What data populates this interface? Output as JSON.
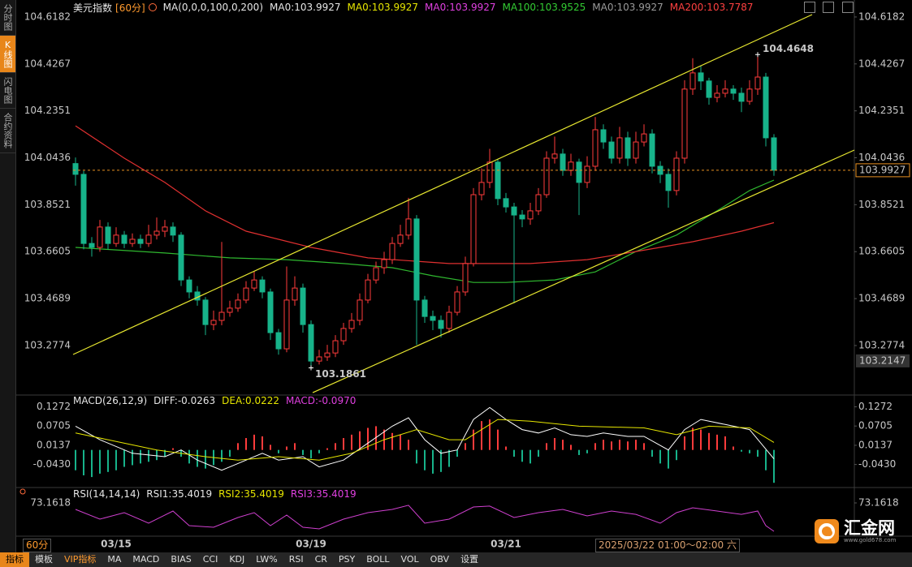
{
  "sidebar": {
    "tabs": [
      "分时图",
      "K线图",
      "闪电图",
      "合约资料"
    ],
    "active": 1
  },
  "toolbar": {
    "items": [
      "指标",
      "模板",
      "VIP指标",
      "MA",
      "MACD",
      "BIAS",
      "CCI",
      "KDJ",
      "LW%",
      "RSI",
      "CR",
      "PSY",
      "BOLL",
      "VOL",
      "OBV",
      "设置"
    ],
    "active": 0,
    "highlight": 2
  },
  "status": {
    "period": "60分",
    "cursor_time": "2025/03/22 01:00～02:00 六"
  },
  "logo": {
    "name": "汇金网",
    "url": "www.gold678.com"
  },
  "chart_data": [
    {
      "type": "candlestick",
      "title": "美元指数",
      "period": "[60分]",
      "ma_params": "MA(0,0,0,100,0,200)",
      "labels": [
        {
          "text": "MA0:103.9927",
          "color": "#e6e6e6"
        },
        {
          "text": "MA0:103.9927",
          "color": "#e6e600"
        },
        {
          "text": "MA0:103.9927",
          "color": "#e040e0"
        },
        {
          "text": "MA100:103.9525",
          "color": "#33cc33"
        },
        {
          "text": "MA0:103.9927",
          "color": "#9a9a9a"
        },
        {
          "text": "MA200:103.7787",
          "color": "#ff4040"
        }
      ],
      "categories": [
        null,
        null,
        null,
        null,
        null,
        "03/15",
        null,
        null,
        null,
        null,
        null,
        null,
        null,
        null,
        null,
        null,
        null,
        null,
        null,
        null,
        null,
        null,
        null,
        null,
        null,
        null,
        null,
        null,
        null,
        "03/19",
        null,
        null,
        null,
        null,
        null,
        null,
        null,
        null,
        null,
        null,
        null,
        null,
        null,
        null,
        null,
        null,
        null,
        null,
        null,
        null,
        null,
        null,
        null,
        "03/21",
        null,
        null,
        null,
        null,
        null,
        null,
        null,
        null,
        null,
        null,
        null,
        null,
        null,
        null,
        null,
        null,
        null,
        null,
        null,
        null,
        null,
        null,
        null,
        null,
        null,
        null,
        null,
        null,
        null,
        null,
        null,
        null,
        null
      ],
      "open": [
        104.02,
        103.976,
        103.694,
        103.678,
        103.761,
        103.694,
        103.728,
        103.694,
        103.711,
        103.694,
        103.728,
        103.744,
        103.761,
        103.728,
        103.545,
        103.496,
        103.463,
        103.363,
        103.38,
        103.413,
        103.43,
        103.463,
        103.512,
        103.545,
        103.496,
        103.33,
        103.264,
        103.463,
        103.512,
        103.363,
        103.214,
        103.231,
        103.247,
        103.297,
        103.347,
        103.38,
        103.463,
        103.545,
        103.595,
        103.628,
        103.694,
        103.728,
        103.794,
        103.463,
        103.396,
        103.38,
        103.347,
        103.413,
        103.496,
        103.612,
        103.893,
        103.943,
        104.026,
        103.877,
        103.843,
        103.81,
        103.794,
        103.827,
        103.893,
        104.042,
        104.059,
        103.992,
        104.026,
        103.943,
        104.009,
        104.158,
        104.108,
        104.042,
        104.125,
        104.042,
        104.108,
        104.141,
        104.009,
        103.976,
        103.91,
        104.042,
        104.324,
        104.39,
        104.357,
        104.29,
        104.307,
        104.324,
        104.307,
        104.274,
        104.324,
        104.373,
        104.125
      ],
      "high": [
        104.045,
        103.99,
        103.72,
        103.79,
        103.78,
        103.76,
        103.745,
        103.735,
        103.73,
        103.77,
        103.8,
        103.79,
        103.78,
        103.74,
        103.56,
        103.52,
        103.475,
        103.42,
        103.7,
        103.46,
        103.49,
        103.54,
        103.58,
        103.56,
        103.51,
        103.345,
        103.6,
        103.56,
        103.53,
        103.38,
        103.26,
        103.28,
        103.32,
        103.37,
        103.41,
        103.49,
        103.57,
        103.62,
        103.66,
        103.72,
        103.77,
        103.88,
        103.81,
        103.48,
        103.42,
        103.4,
        103.44,
        103.52,
        103.64,
        103.92,
        104.0,
        104.08,
        104.04,
        103.9,
        103.86,
        103.83,
        103.86,
        103.92,
        104.07,
        104.13,
        104.08,
        104.06,
        104.04,
        104.05,
        104.21,
        104.18,
        104.13,
        104.17,
        104.15,
        104.15,
        104.18,
        104.16,
        104.03,
        104.0,
        104.07,
        104.36,
        104.45,
        104.42,
        104.37,
        104.34,
        104.36,
        104.34,
        104.33,
        104.36,
        104.4648,
        104.39,
        104.14
      ],
      "low": [
        103.93,
        103.67,
        103.64,
        103.66,
        103.67,
        103.68,
        103.675,
        103.68,
        103.675,
        103.68,
        103.71,
        103.72,
        103.7,
        103.52,
        103.47,
        103.44,
        103.32,
        103.34,
        103.36,
        103.395,
        103.415,
        103.45,
        103.5,
        103.47,
        103.3,
        103.24,
        103.25,
        103.44,
        103.33,
        103.1861,
        103.2,
        103.215,
        103.23,
        103.28,
        103.33,
        103.36,
        103.45,
        103.53,
        103.57,
        103.61,
        103.68,
        103.71,
        103.28,
        103.37,
        103.34,
        103.31,
        103.33,
        103.4,
        103.48,
        103.6,
        103.87,
        103.92,
        103.85,
        103.82,
        103.45,
        103.76,
        103.77,
        103.81,
        103.88,
        104.02,
        103.97,
        103.97,
        103.81,
        103.92,
        103.99,
        104.08,
        104.02,
        104.02,
        104.01,
        104.02,
        104.09,
        103.98,
        103.94,
        103.84,
        103.89,
        104.02,
        104.3,
        104.32,
        104.26,
        104.27,
        104.29,
        104.28,
        104.23,
        104.26,
        104.3,
        104.09,
        103.97
      ],
      "close": [
        103.976,
        103.694,
        103.678,
        103.761,
        103.694,
        103.728,
        103.694,
        103.711,
        103.694,
        103.728,
        103.744,
        103.761,
        103.728,
        103.545,
        103.496,
        103.463,
        103.363,
        103.38,
        103.413,
        103.43,
        103.463,
        103.512,
        103.545,
        103.496,
        103.33,
        103.264,
        103.463,
        103.512,
        103.363,
        103.214,
        103.231,
        103.247,
        103.297,
        103.347,
        103.38,
        103.463,
        103.545,
        103.595,
        103.628,
        103.694,
        103.728,
        103.794,
        103.463,
        103.396,
        103.38,
        103.347,
        103.413,
        103.496,
        103.612,
        103.893,
        103.943,
        104.026,
        103.877,
        103.843,
        103.81,
        103.794,
        103.827,
        103.893,
        104.042,
        104.059,
        103.992,
        104.026,
        103.943,
        104.009,
        104.158,
        104.108,
        104.042,
        104.125,
        104.042,
        104.108,
        104.141,
        104.009,
        103.976,
        103.91,
        104.042,
        104.324,
        104.39,
        104.357,
        104.29,
        104.307,
        104.324,
        104.307,
        104.274,
        104.324,
        104.373,
        104.125,
        103.9927
      ],
      "up_color": "#ff3b3b",
      "down_color": "#17b38a",
      "lines": [
        {
          "color": "#2fb82f",
          "x": [
            0,
            11,
            19,
            26,
            33,
            39,
            44,
            49,
            53,
            59,
            64,
            69,
            74,
            79,
            83,
            86
          ],
          "values": [
            103.678,
            103.655,
            103.635,
            103.628,
            103.612,
            103.595,
            103.562,
            103.535,
            103.535,
            103.545,
            103.578,
            103.661,
            103.728,
            103.827,
            103.91,
            103.9525
          ]
        },
        {
          "color": "#e03030",
          "x": [
            0,
            6,
            11,
            16,
            21,
            29,
            36,
            46,
            56,
            63,
            69,
            76,
            82,
            86
          ],
          "values": [
            104.174,
            104.042,
            103.943,
            103.827,
            103.744,
            103.678,
            103.635,
            103.612,
            103.612,
            103.628,
            103.661,
            103.701,
            103.744,
            103.7787
          ]
        }
      ],
      "channels": [
        {
          "color": "#e8e830",
          "x": [
            -0.3,
            90.7
          ],
          "values": [
            103.241,
            104.628
          ]
        },
        {
          "color": "#e8e830",
          "x": [
            29.2,
            95.9
          ],
          "values": [
            103.085,
            104.075
          ]
        }
      ],
      "last_price_color": "#e89020",
      "low_marker": 103.2147,
      "xlim": [
        -0.5,
        95.9
      ],
      "ylim": [
        103.082,
        104.661
      ],
      "yticks": [
        103.2774,
        103.4689,
        103.6605,
        103.8521,
        104.0436,
        104.2351,
        104.4267,
        104.6182
      ]
    },
    {
      "type": "macd",
      "title": "MACD(26,12,9)",
      "labels": [
        {
          "text": "DIFF:-0.0263",
          "color": "#e6e6e6"
        },
        {
          "text": "DEA:0.0222",
          "color": "#e6e600"
        },
        {
          "text": "MACD:-0.0970",
          "color": "#e040e0"
        }
      ],
      "histogram": [
        -0.06,
        -0.075,
        -0.08,
        -0.07,
        -0.065,
        -0.06,
        -0.05,
        -0.045,
        -0.04,
        -0.035,
        -0.03,
        -0.02,
        0.005,
        -0.02,
        -0.04,
        -0.05,
        -0.055,
        -0.045,
        -0.035,
        -0.02,
        0.02,
        0.035,
        0.045,
        0.04,
        0.015,
        -0.01,
        0.01,
        0.02,
        -0.015,
        -0.025,
        -0.01,
        0.005,
        0.02,
        0.035,
        0.045,
        0.055,
        0.065,
        0.07,
        0.06,
        0.05,
        0.045,
        0.03,
        -0.04,
        -0.06,
        -0.07,
        -0.065,
        -0.05,
        -0.02,
        0.02,
        0.06,
        0.085,
        0.09,
        0.06,
        0.01,
        -0.02,
        -0.035,
        -0.04,
        -0.02,
        0.02,
        0.035,
        0.03,
        0.015,
        -0.015,
        -0.01,
        0.02,
        0.03,
        0.025,
        0.03,
        0.025,
        0.03,
        0.02,
        -0.02,
        -0.04,
        -0.055,
        -0.03,
        0.04,
        0.065,
        0.06,
        0.05,
        0.045,
        0.04,
        0.01,
        -0.005,
        -0.01,
        -0.02,
        -0.06,
        -0.097
      ],
      "up_color": "#ff3b3b",
      "down_color": "#17b38a",
      "diff": {
        "color": "#ffffff",
        "x": [
          0,
          3,
          7,
          11,
          13,
          15,
          18,
          20,
          23,
          25,
          28,
          30,
          33,
          36,
          39,
          41,
          43,
          45,
          47,
          49,
          51,
          53,
          55,
          57,
          59,
          61,
          63,
          65,
          68,
          70,
          73,
          75,
          77,
          80,
          83,
          86
        ],
        "values": [
          0.07,
          0.03,
          -0.01,
          -0.02,
          0,
          -0.03,
          -0.06,
          -0.04,
          -0.01,
          -0.03,
          -0.02,
          -0.05,
          -0.03,
          0.02,
          0.07,
          0.095,
          0.03,
          -0.01,
          0,
          0.09,
          0.125,
          0.09,
          0.06,
          0.05,
          0.065,
          0.045,
          0.04,
          0.05,
          0.04,
          0.04,
          0,
          0.06,
          0.09,
          0.075,
          0.06,
          -0.0263
        ]
      },
      "dea": {
        "color": "#e6e600",
        "x": [
          0,
          4,
          10,
          16,
          20,
          25,
          30,
          34,
          38,
          42,
          46,
          48,
          52,
          56,
          62,
          70,
          74,
          78,
          83,
          86
        ],
        "values": [
          0.05,
          0.03,
          0,
          -0.02,
          -0.03,
          -0.02,
          -0.03,
          -0.01,
          0.03,
          0.06,
          0.03,
          0.03,
          0.09,
          0.085,
          0.07,
          0.065,
          0.045,
          0.07,
          0.065,
          0.0222
        ]
      },
      "ylim": [
        -0.1085,
        0.15
      ],
      "yticks": [
        0.1272,
        0.0705,
        0.0137,
        {
          "value": -0.043,
          "label": "-0.0430"
        }
      ]
    },
    {
      "type": "rsi",
      "title": "RSI(14,14,14)",
      "labels": [
        {
          "text": "RSI1:35.4019",
          "color": "#e6e6e6"
        },
        {
          "text": "RSI2:35.4019",
          "color": "#e6e600"
        },
        {
          "text": "RSI3:35.4019",
          "color": "#e040e0"
        }
      ],
      "series": [
        {
          "color": "#d040d0",
          "x": [
            0,
            3,
            6,
            9,
            12,
            14,
            17,
            20,
            22,
            24,
            26,
            28,
            30,
            33,
            36,
            39,
            41,
            43,
            46,
            49,
            51,
            54,
            57,
            60,
            63,
            66,
            69,
            72,
            74,
            76,
            79,
            82,
            84,
            85,
            86
          ],
          "values": [
            64.5,
            51.6,
            60.2,
            46.2,
            62.4,
            43,
            40.8,
            53.7,
            60.2,
            43,
            57,
            40.8,
            38.6,
            51.6,
            60.2,
            64.5,
            70,
            46.2,
            51.6,
            67.8,
            68.9,
            53.7,
            60.2,
            64.5,
            55.9,
            62.4,
            57.9,
            46.2,
            60.2,
            66.7,
            62.4,
            57.9,
            62.4,
            43,
            35.4019
          ]
        }
      ],
      "ylim": [
        30,
        91.5
      ],
      "yticks": [
        73.1618
      ]
    }
  ]
}
